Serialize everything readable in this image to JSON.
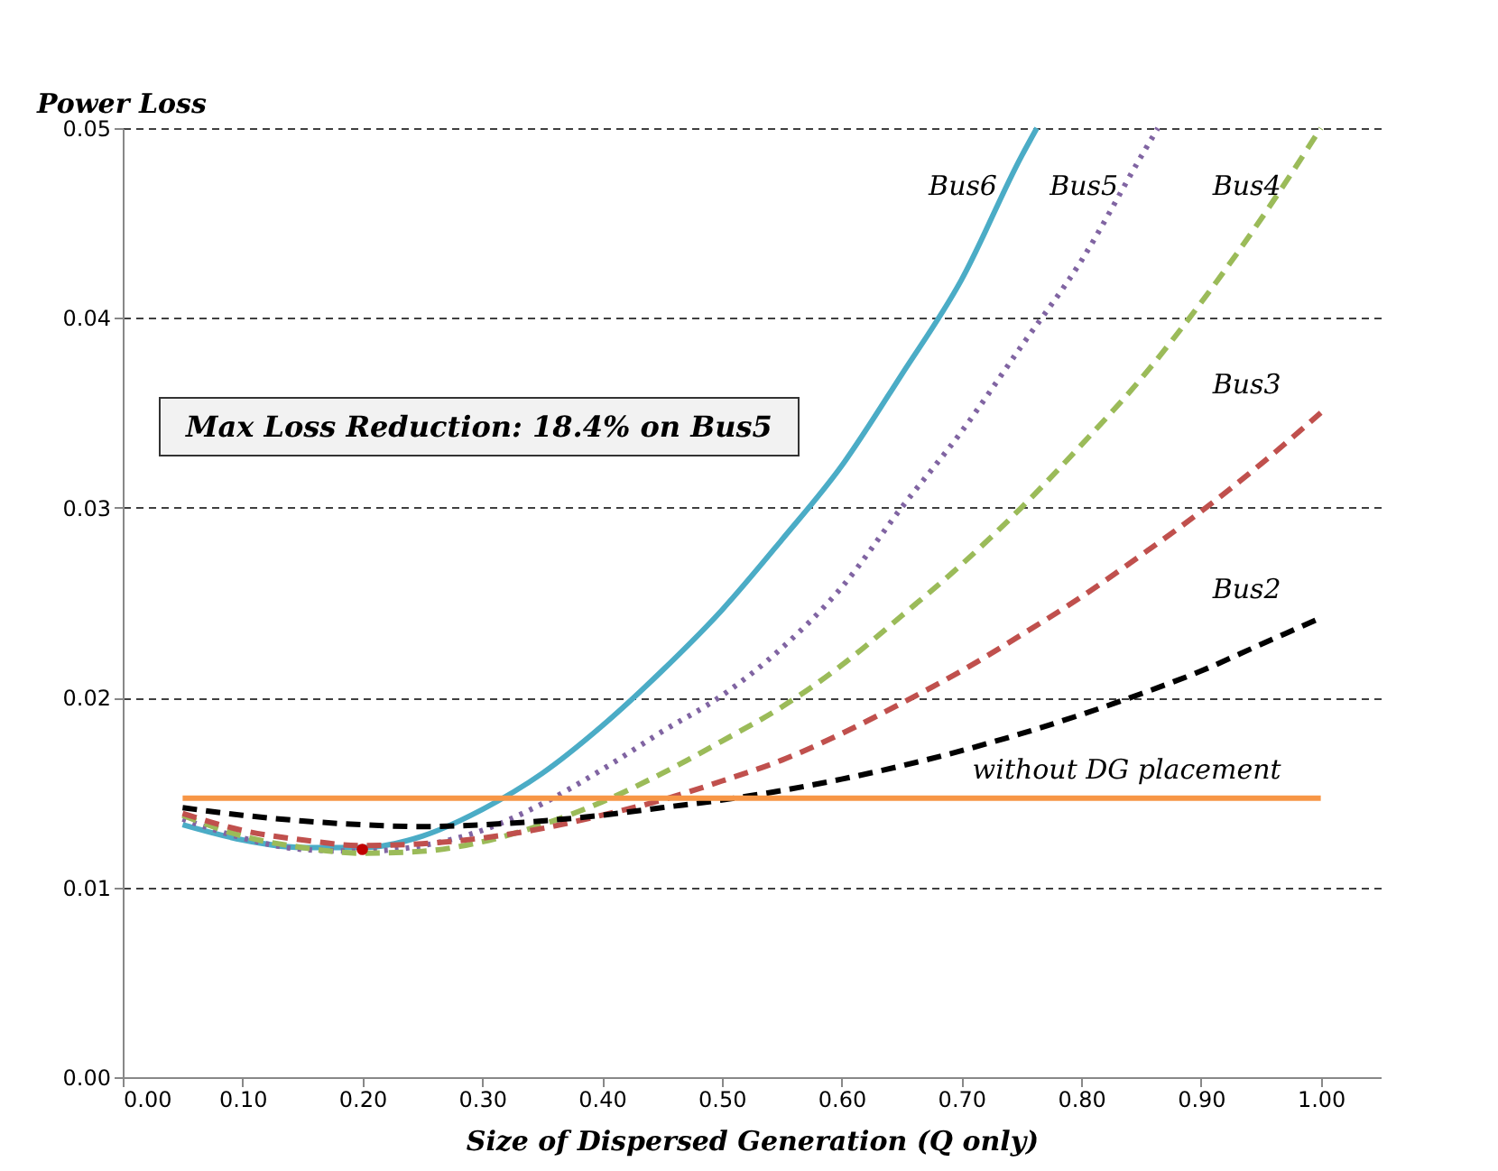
{
  "chart_data": {
    "type": "line",
    "ylabel": "Power Loss",
    "xlabel": "Size of Dispersed Generation (Q only)",
    "annotations": [
      "Max Loss Reduction: 18.4% on Bus5"
    ],
    "xlim": [
      0,
      1.05
    ],
    "ylim": [
      0,
      0.05
    ],
    "xticks": [
      {
        "value": 0,
        "label": "0.00"
      },
      {
        "value": 0.1,
        "label": "0.10"
      },
      {
        "value": 0.2,
        "label": "0.20"
      },
      {
        "value": 0.3,
        "label": "0.30"
      },
      {
        "value": 0.4,
        "label": "0.40"
      },
      {
        "value": 0.5,
        "label": "0.50"
      },
      {
        "value": 0.6,
        "label": "0.60"
      },
      {
        "value": 0.7,
        "label": "0.70"
      },
      {
        "value": 0.8,
        "label": "0.80"
      },
      {
        "value": 0.9,
        "label": "0.90"
      },
      {
        "value": 1,
        "label": "1.00"
      }
    ],
    "yticks": [
      {
        "value": 0,
        "label": "0.00"
      },
      {
        "value": 0.01,
        "label": "0.01"
      },
      {
        "value": 0.02,
        "label": "0.02"
      },
      {
        "value": 0.03,
        "label": "0.03"
      },
      {
        "value": 0.04,
        "label": "0.04"
      },
      {
        "value": 0.05,
        "label": "0.05"
      }
    ],
    "grid": "y",
    "series": [
      {
        "name": "Bus6",
        "color": "#4bacc6",
        "line_style": "solid",
        "x": [
          0.05,
          0.1,
          0.15,
          0.2,
          0.25,
          0.3,
          0.35,
          0.4,
          0.45,
          0.5,
          0.55,
          0.6,
          0.65,
          0.7,
          0.75,
          0.763
        ],
        "values": [
          0.0133,
          0.0125,
          0.0121,
          0.0121,
          0.0127,
          0.0141,
          0.016,
          0.0185,
          0.0214,
          0.0246,
          0.0283,
          0.0322,
          0.037,
          0.042,
          0.0485,
          0.05
        ]
      },
      {
        "name": "Bus5",
        "color": "#8064a2",
        "line_style": "dotted",
        "x": [
          0.05,
          0.1,
          0.15,
          0.2,
          0.25,
          0.3,
          0.35,
          0.4,
          0.45,
          0.5,
          0.55,
          0.6,
          0.65,
          0.7,
          0.75,
          0.8,
          0.85,
          0.864
        ],
        "values": [
          0.0136,
          0.0126,
          0.012,
          0.0119,
          0.0122,
          0.013,
          0.0144,
          0.0162,
          0.0182,
          0.0201,
          0.0226,
          0.0258,
          0.03,
          0.034,
          0.0385,
          0.043,
          0.0485,
          0.05
        ]
      },
      {
        "name": "Bus4",
        "color": "#9bbb59",
        "line_style": "dashed",
        "x": [
          0.05,
          0.1,
          0.15,
          0.2,
          0.25,
          0.3,
          0.35,
          0.4,
          0.45,
          0.5,
          0.55,
          0.6,
          0.65,
          0.7,
          0.75,
          0.8,
          0.85,
          0.9,
          0.95,
          1
        ],
        "values": [
          0.0138,
          0.0127,
          0.0121,
          0.0118,
          0.0119,
          0.0124,
          0.0133,
          0.0145,
          0.016,
          0.0177,
          0.0195,
          0.0217,
          0.0243,
          0.027,
          0.03,
          0.0333,
          0.0368,
          0.0408,
          0.0452,
          0.05
        ]
      },
      {
        "name": "Bus3",
        "color": "#c0504d",
        "line_style": "dashed",
        "x": [
          0.05,
          0.1,
          0.15,
          0.2,
          0.25,
          0.3,
          0.35,
          0.4,
          0.45,
          0.5,
          0.55,
          0.6,
          0.65,
          0.7,
          0.75,
          0.8,
          0.85,
          0.9,
          0.95,
          1
        ],
        "values": [
          0.0139,
          0.013,
          0.0125,
          0.0122,
          0.0123,
          0.0126,
          0.0131,
          0.0138,
          0.0146,
          0.0156,
          0.0167,
          0.0181,
          0.0197,
          0.0214,
          0.0233,
          0.0253,
          0.0275,
          0.0298,
          0.0323,
          0.035
        ]
      },
      {
        "name": "Bus2",
        "color": "#000000",
        "line_style": "dashed",
        "x": [
          0.05,
          0.1,
          0.15,
          0.2,
          0.25,
          0.3,
          0.35,
          0.4,
          0.45,
          0.5,
          0.55,
          0.6,
          0.65,
          0.7,
          0.75,
          0.8,
          0.85,
          0.9,
          0.95,
          1
        ],
        "values": [
          0.0142,
          0.0138,
          0.0135,
          0.0133,
          0.0132,
          0.0133,
          0.0135,
          0.0138,
          0.0142,
          0.0146,
          0.0151,
          0.0157,
          0.0164,
          0.0172,
          0.0181,
          0.0191,
          0.0202,
          0.0214,
          0.0228,
          0.0242
        ]
      },
      {
        "name": "without DG placement",
        "color": "#f79646",
        "line_style": "solid",
        "x": [
          0.05,
          1
        ],
        "values": [
          0.0147,
          0.0147
        ]
      },
      {
        "type": "scatter",
        "color": "#c00000",
        "marker": "circle",
        "x": [
          0.2
        ],
        "values": [
          0.012
        ]
      }
    ]
  }
}
